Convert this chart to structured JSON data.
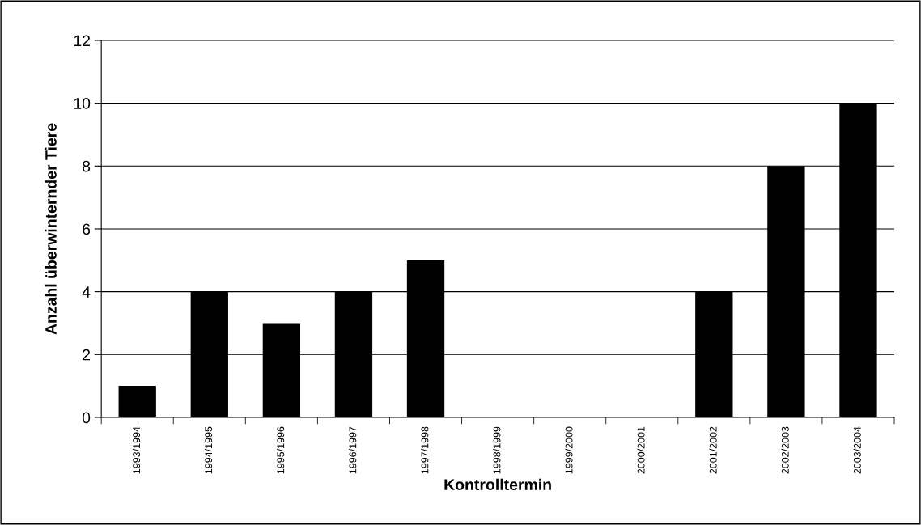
{
  "chart_data": {
    "type": "bar",
    "xlabel": "Kontrolltermin",
    "ylabel": "Anzahl überwinternder Tiere",
    "categories": [
      "1993/1994",
      "1994/1995",
      "1995/1996",
      "1996/1997",
      "1997/1998",
      "1998/1999",
      "1999/2000",
      "2000/2001",
      "2001/2002",
      "2002/2003",
      "2003/2004"
    ],
    "values": [
      1,
      4,
      3,
      4,
      5,
      0,
      0,
      0,
      4,
      8,
      10
    ],
    "color": "#000000",
    "ylim": [
      0,
      12
    ],
    "yticks": [
      0,
      2,
      4,
      6,
      8,
      10,
      12
    ],
    "grid": "y",
    "legend": false
  }
}
